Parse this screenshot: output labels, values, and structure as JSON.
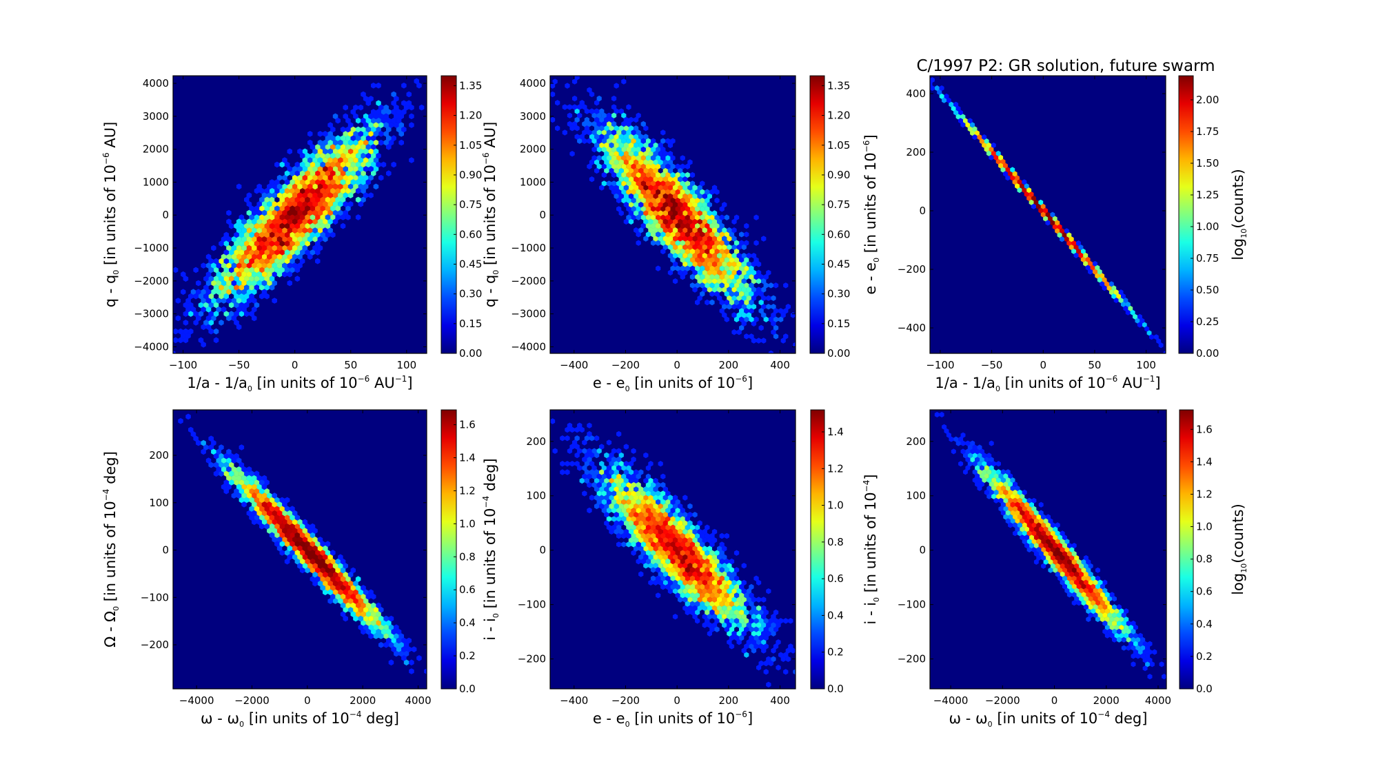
{
  "figure": {
    "title": "C/1997 P2:  GR solution, future swarm"
  },
  "chart_data": [
    {
      "type": "heatmap",
      "subtype": "hexbin",
      "id": "p1",
      "xlabel": {
        "main": "1/a - 1/a",
        "sub": "0",
        "rest": " [in units of 10",
        "sup": "−6",
        "rest2": " AU",
        "sup2": "−1",
        "end": "]"
      },
      "ylabel": {
        "main": "q - q",
        "sub": "0",
        "rest": "  [in units of 10",
        "sup": "−6",
        "end": "  AU]"
      },
      "xlim": [
        -109,
        118
      ],
      "ylim": [
        -4200,
        4230
      ],
      "xticks": [
        -100,
        -50,
        0,
        50,
        100
      ],
      "xtick_labels": [
        "−100",
        "−50",
        "0",
        "50",
        "100"
      ],
      "yticks": [
        -4000,
        -3000,
        -2000,
        -1000,
        0,
        1000,
        2000,
        3000,
        4000
      ],
      "ytick_labels": [
        "−4000",
        "−3000",
        "−2000",
        "−1000",
        "0",
        "1000",
        "2000",
        "3000",
        "4000"
      ],
      "colorbar": {
        "vmin": 0,
        "vmax": 1.4,
        "ticks": [
          0,
          0.15,
          0.3,
          0.45,
          0.6,
          0.75,
          0.9,
          1.05,
          1.2,
          1.35
        ],
        "tick_labels": [
          "0.00",
          "0.15",
          "0.30",
          "0.45",
          "0.60",
          "0.75",
          "0.90",
          "1.05",
          "1.20",
          "1.35"
        ],
        "label": ""
      },
      "distribution": {
        "mean": [
          0,
          0
        ],
        "std": [
          36,
          1300
        ],
        "correlation": 0.87,
        "samples": 5000,
        "seed": 11
      }
    },
    {
      "type": "heatmap",
      "subtype": "hexbin",
      "id": "p2",
      "xlabel": {
        "main": "e - e",
        "sub": "0",
        "rest": " [in units of 10",
        "sup": "−6",
        "end": "]"
      },
      "ylabel": {
        "main": "q - q",
        "sub": "0",
        "rest": "  [in units of 10",
        "sup": "−6",
        "end": "  AU]"
      },
      "xlim": [
        -493,
        460
      ],
      "ylim": [
        -4200,
        4230
      ],
      "xticks": [
        -400,
        -200,
        0,
        200,
        400
      ],
      "xtick_labels": [
        "−400",
        "−200",
        "0",
        "200",
        "400"
      ],
      "yticks": [
        -4000,
        -3000,
        -2000,
        -1000,
        0,
        1000,
        2000,
        3000,
        4000
      ],
      "ytick_labels": [
        "−4000",
        "−3000",
        "−2000",
        "−1000",
        "0",
        "1000",
        "2000",
        "3000",
        "4000"
      ],
      "colorbar": {
        "vmin": 0,
        "vmax": 1.4,
        "ticks": [
          0,
          0.15,
          0.3,
          0.45,
          0.6,
          0.75,
          0.9,
          1.05,
          1.2,
          1.35
        ],
        "tick_labels": [
          "0.00",
          "0.15",
          "0.30",
          "0.45",
          "0.60",
          "0.75",
          "0.90",
          "1.05",
          "1.20",
          "1.35"
        ],
        "label": ""
      },
      "distribution": {
        "mean": [
          0,
          0
        ],
        "std": [
          145,
          1300
        ],
        "correlation": -0.87,
        "samples": 5000,
        "seed": 11
      }
    },
    {
      "type": "heatmap",
      "subtype": "hexbin",
      "id": "p3",
      "title": "C/1997 P2:  GR solution, future swarm",
      "xlabel": {
        "main": "1/a - 1/a",
        "sub": "0",
        "rest": " [in units of 10",
        "sup": "−6",
        "rest2": " AU",
        "sup2": "−1",
        "end": "]"
      },
      "ylabel": {
        "main": "e - e",
        "sub": "0",
        "rest": " [in units of 10",
        "sup": "−6",
        "end": "]"
      },
      "xlim": [
        -110,
        119
      ],
      "ylim": [
        -487,
        461
      ],
      "xticks": [
        -100,
        -50,
        0,
        50,
        100
      ],
      "xtick_labels": [
        "−100",
        "−50",
        "0",
        "50",
        "100"
      ],
      "yticks": [
        -400,
        -200,
        0,
        200,
        400
      ],
      "ytick_labels": [
        "−400",
        "−200",
        "0",
        "200",
        "400"
      ],
      "colorbar": {
        "vmin": 0,
        "vmax": 2.19,
        "ticks": [
          0,
          0.25,
          0.5,
          0.75,
          1.0,
          1.25,
          1.5,
          1.75,
          2.0
        ],
        "tick_labels": [
          "0.00",
          "0.25",
          "0.50",
          "0.75",
          "1.00",
          "1.25",
          "1.50",
          "1.75",
          "2.00"
        ],
        "label": {
          "main": "log",
          "sub": "10",
          "end": "(counts)"
        }
      },
      "distribution": {
        "mean": [
          0,
          0
        ],
        "std": [
          36,
          145
        ],
        "correlation": -0.9995,
        "samples": 5000,
        "seed": 11
      }
    },
    {
      "type": "heatmap",
      "subtype": "hexbin",
      "id": "p4",
      "xlabel": {
        "main": "ω - ω",
        "sub": "0",
        "rest": "  [in units of 10",
        "sup": "−4",
        "end": "  deg]"
      },
      "ylabel": {
        "main": "Ω - Ω",
        "sub": "0",
        "rest": "  [in units of 10",
        "sup": "−4",
        "end": "  deg]"
      },
      "xlim": [
        -4850,
        4310
      ],
      "ylim": [
        -293,
        296
      ],
      "xticks": [
        -4000,
        -2000,
        0,
        2000,
        4000
      ],
      "xtick_labels": [
        "−4000",
        "−2000",
        "0",
        "2000",
        "4000"
      ],
      "yticks": [
        -200,
        -100,
        0,
        100,
        200
      ],
      "ytick_labels": [
        "−200",
        "−100",
        "0",
        "100",
        "200"
      ],
      "colorbar": {
        "vmin": 0,
        "vmax": 1.69,
        "ticks": [
          0,
          0.2,
          0.4,
          0.6,
          0.8,
          1.0,
          1.2,
          1.4,
          1.6
        ],
        "tick_labels": [
          "0.0",
          "0.2",
          "0.4",
          "0.6",
          "0.8",
          "1.0",
          "1.2",
          "1.4",
          "1.6"
        ],
        "label": ""
      },
      "distribution": {
        "mean": [
          0,
          0
        ],
        "std": [
          1300,
          80
        ],
        "correlation": -0.975,
        "samples": 5000,
        "seed": 23
      }
    },
    {
      "type": "heatmap",
      "subtype": "hexbin",
      "id": "p5",
      "xlabel": {
        "main": "e - e",
        "sub": "0",
        "rest": " [in units of 10",
        "sup": "−6",
        "end": "]"
      },
      "ylabel": {
        "main": "i - i",
        "sub": "0",
        "rest": " [in units of 10",
        "sup": "−4",
        "end": "  deg]"
      },
      "xlim": [
        -493,
        460
      ],
      "ylim": [
        -255,
        258
      ],
      "xticks": [
        -400,
        -200,
        0,
        200,
        400
      ],
      "xtick_labels": [
        "−400",
        "−200",
        "0",
        "200",
        "400"
      ],
      "yticks": [
        -200,
        -100,
        0,
        100,
        200
      ],
      "ytick_labels": [
        "−200",
        "−100",
        "0",
        "100",
        "200"
      ],
      "colorbar": {
        "vmin": 0,
        "vmax": 1.52,
        "ticks": [
          0,
          0.2,
          0.4,
          0.6,
          0.8,
          1.0,
          1.2,
          1.4
        ],
        "tick_labels": [
          "0.0",
          "0.2",
          "0.4",
          "0.6",
          "0.8",
          "1.0",
          "1.2",
          "1.4"
        ],
        "label": ""
      },
      "distribution": {
        "mean": [
          0,
          0
        ],
        "std": [
          145,
          72
        ],
        "correlation": -0.88,
        "samples": 5000,
        "seed": 37
      }
    },
    {
      "type": "heatmap",
      "subtype": "hexbin",
      "id": "p6",
      "xlabel": {
        "main": "ω - ω",
        "sub": "0",
        "rest": "  [in units of 10",
        "sup": "−4",
        "end": "  deg]"
      },
      "ylabel": {
        "main": "i - i",
        "sub": "0",
        "rest": "  [in units of 10",
        "sup": "−4",
        "end": "]"
      },
      "xlim": [
        -4800,
        4320
      ],
      "ylim": [
        -255,
        258
      ],
      "xticks": [
        -4000,
        -2000,
        0,
        2000,
        4000
      ],
      "xtick_labels": [
        "−4000",
        "−2000",
        "0",
        "2000",
        "4000"
      ],
      "yticks": [
        -200,
        -100,
        0,
        100,
        200
      ],
      "ytick_labels": [
        "−200",
        "−100",
        "0",
        "100",
        "200"
      ],
      "colorbar": {
        "vmin": 0,
        "vmax": 1.72,
        "ticks": [
          0,
          0.2,
          0.4,
          0.6,
          0.8,
          1.0,
          1.2,
          1.4,
          1.6
        ],
        "tick_labels": [
          "0.0",
          "0.2",
          "0.4",
          "0.6",
          "0.8",
          "1.0",
          "1.2",
          "1.4",
          "1.6"
        ],
        "label": {
          "main": "log",
          "sub": "10",
          "end": "(counts)"
        }
      },
      "distribution": {
        "mean": [
          0,
          0
        ],
        "std": [
          1300,
          72
        ],
        "correlation": -0.975,
        "samples": 5000,
        "seed": 23
      }
    }
  ],
  "colors": {
    "background": "#ffffff",
    "axes_frame": "#000000",
    "colormap": "jet",
    "empty_bin": "#00007f"
  }
}
